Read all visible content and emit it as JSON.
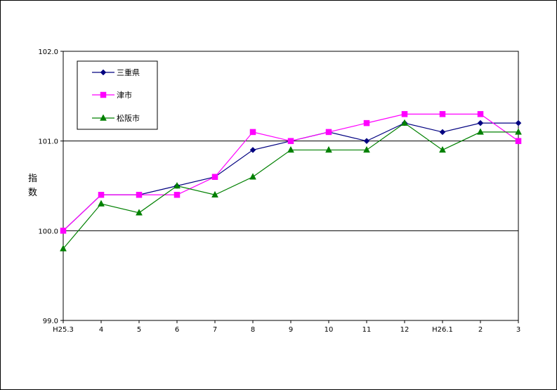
{
  "chart_data": {
    "type": "line",
    "categories": [
      "H25.3",
      "4",
      "5",
      "6",
      "7",
      "8",
      "9",
      "10",
      "11",
      "12",
      "H26.1",
      "2",
      "3"
    ],
    "ylabel_chars": [
      "指",
      "数"
    ],
    "ylim": [
      99.0,
      102.0
    ],
    "yticks": [
      99.0,
      100.0,
      101.0,
      102.0
    ],
    "ytick_labels": [
      "99.0",
      "100.0",
      "101.0",
      "102.0"
    ],
    "gridlines": [
      100.0,
      101.0
    ],
    "legend_position": "top-left",
    "series": [
      {
        "name": "三重県",
        "color": "#000080",
        "marker": "diamond",
        "values": [
          100.0,
          100.4,
          100.4,
          100.5,
          100.6,
          100.9,
          101.0,
          101.1,
          101.0,
          101.2,
          101.1,
          101.2,
          101.2
        ]
      },
      {
        "name": "津市",
        "color": "#FF00FF",
        "marker": "square",
        "values": [
          100.0,
          100.4,
          100.4,
          100.4,
          100.6,
          101.1,
          101.0,
          101.1,
          101.2,
          101.3,
          101.3,
          101.3,
          101.0
        ]
      },
      {
        "name": "松阪市",
        "color": "#008000",
        "marker": "triangle",
        "values": [
          99.8,
          100.3,
          100.2,
          100.5,
          100.4,
          100.6,
          100.9,
          100.9,
          100.9,
          101.2,
          100.9,
          101.1,
          101.1
        ]
      }
    ]
  }
}
